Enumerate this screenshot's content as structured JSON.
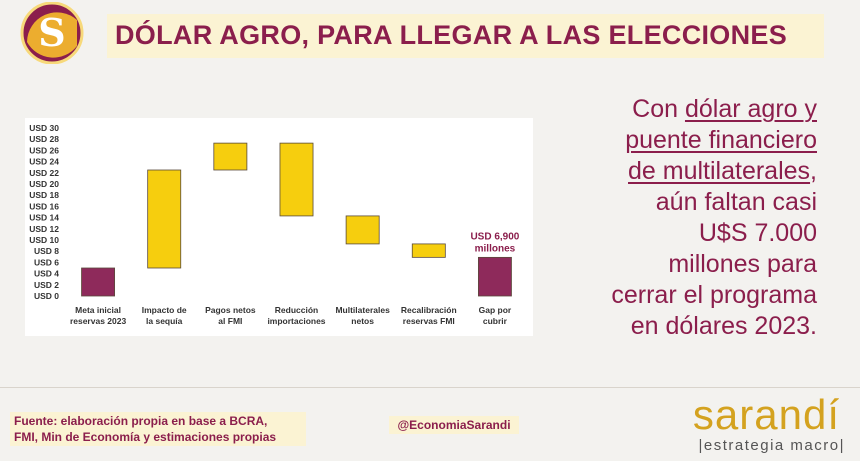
{
  "header": {
    "logo_letter": "S",
    "title": "DÓLAR AGRO, PARA LLEGAR A LAS ELECCIONES"
  },
  "chart_data": {
    "type": "bar",
    "subtype": "waterfall",
    "title": "",
    "xlabel": "",
    "ylabel": "",
    "ylim": [
      0,
      30
    ],
    "yticks": [
      "USD 0",
      "USD 2",
      "USD 4",
      "USD 6",
      "USD 8",
      "USD 10",
      "USD 12",
      "USD 14",
      "USD 16",
      "USD 18",
      "USD 20",
      "USD 22",
      "USD 24",
      "USD 26",
      "USD 28",
      "USD 30"
    ],
    "grid": false,
    "categories": [
      [
        "Meta inicial",
        "reservas 2023"
      ],
      [
        "Impacto de",
        "la sequía"
      ],
      [
        "Pagos netos",
        "al FMI"
      ],
      [
        "Reducción",
        "importaciones"
      ],
      [
        "Multilaterales",
        "netos"
      ],
      [
        "Recalibración",
        "reservas FMI"
      ],
      [
        "Gap por",
        "cubrir"
      ]
    ],
    "bars": [
      {
        "low": 0,
        "high": 5,
        "kind": "total"
      },
      {
        "low": 5,
        "high": 22.5,
        "kind": "step"
      },
      {
        "low": 22.5,
        "high": 27.3,
        "kind": "step"
      },
      {
        "low": 14.3,
        "high": 27.3,
        "kind": "step"
      },
      {
        "low": 9.3,
        "high": 14.3,
        "kind": "step"
      },
      {
        "low": 6.9,
        "high": 9.3,
        "kind": "step"
      },
      {
        "low": 0,
        "high": 6.9,
        "kind": "total"
      }
    ],
    "data_labels": [
      {
        "bar_index": 6,
        "lines": [
          "USD 6,900",
          "millones"
        ]
      }
    ],
    "colors": {
      "total": "#8e2a5b",
      "step": "#f6ce0e",
      "edge": "#5a4a3a",
      "label": "#8b1e4c"
    }
  },
  "message": {
    "line1_pre": "Con ",
    "line1_ul": "dólar agro y",
    "line2_ul": "puente financiero",
    "line3_ul": "de multilaterales",
    "line3_post": ",",
    "line4": "aún faltan casi",
    "line5": "U$S 7.000",
    "line6": "millones para",
    "line7": "cerrar el programa",
    "line8": "en dólares 2023."
  },
  "footer": {
    "source_line1": "Fuente: elaboración propia en base a BCRA,",
    "source_line2": "FMI, Min de Economía y estimaciones propias",
    "handle": "@EconomiaSarandi",
    "brand": "sarandí",
    "tagline": "|estrategia macro|"
  },
  "colors": {
    "accent": "#8b1e4c",
    "highlight_bg": "#fbf3d3",
    "brand_gold": "#d4a21f"
  }
}
